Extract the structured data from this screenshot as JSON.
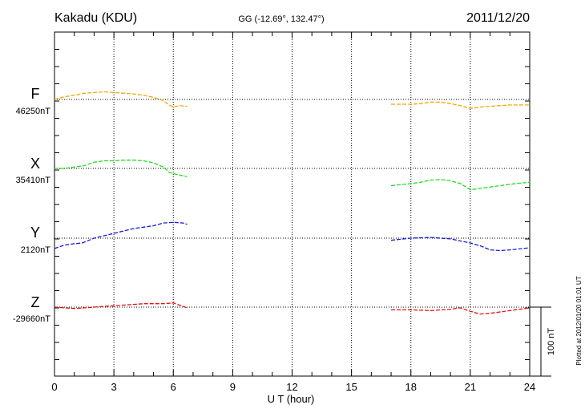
{
  "header": {
    "station": "Kakadu (KDU)",
    "coords": "GG (-12.69°, 132.47°)",
    "date": "2011/12/20"
  },
  "side_note": "Plotted at 2012/01/20 01:01 UT",
  "chart_data": {
    "type": "line",
    "title": "Kakadu (KDU)",
    "xlabel": "U T (hour)",
    "ylabel": "",
    "xlim": [
      0,
      24
    ],
    "x_ticks": [
      0,
      3,
      6,
      9,
      12,
      15,
      18,
      21,
      24
    ],
    "x_tick_labels": [
      "0",
      "3",
      "6",
      "9",
      "12",
      "15",
      "18",
      "21",
      "24"
    ],
    "grid": true,
    "scale_bar": {
      "label": "100 nT",
      "nT": 100
    },
    "series": [
      {
        "name": "F",
        "baseline_label": "46250nT",
        "color": "#f0a800",
        "segments": [
          [
            [
              0.0,
              0
            ],
            [
              0.5,
              4
            ],
            [
              1.0,
              6
            ],
            [
              1.5,
              9
            ],
            [
              2.0,
              10
            ],
            [
              2.5,
              11
            ],
            [
              3.0,
              10
            ],
            [
              3.5,
              9
            ],
            [
              4.0,
              8
            ],
            [
              4.5,
              6
            ],
            [
              5.0,
              3
            ],
            [
              5.5,
              -2
            ],
            [
              5.8,
              -8
            ],
            [
              6.0,
              -11
            ],
            [
              6.3,
              -9
            ],
            [
              6.7,
              -10
            ]
          ],
          [
            [
              17.0,
              -7
            ],
            [
              18.0,
              -7
            ],
            [
              18.5,
              -6
            ],
            [
              19.0,
              -4
            ],
            [
              19.5,
              -4
            ],
            [
              20.0,
              -6
            ],
            [
              20.5,
              -9
            ],
            [
              21.0,
              -13
            ],
            [
              21.5,
              -11
            ],
            [
              22.0,
              -10
            ],
            [
              23.0,
              -8
            ],
            [
              24.0,
              -8
            ]
          ]
        ]
      },
      {
        "name": "X",
        "baseline_label": "35410nT",
        "color": "#22dd22",
        "segments": [
          [
            [
              0.0,
              0
            ],
            [
              0.5,
              0
            ],
            [
              1.0,
              2
            ],
            [
              1.5,
              4
            ],
            [
              2.0,
              9
            ],
            [
              2.5,
              11
            ],
            [
              3.0,
              11
            ],
            [
              3.5,
              12
            ],
            [
              4.0,
              12
            ],
            [
              4.5,
              11
            ],
            [
              5.0,
              8
            ],
            [
              5.5,
              2
            ],
            [
              5.8,
              -6
            ],
            [
              6.2,
              -9
            ],
            [
              6.7,
              -12
            ]
          ],
          [
            [
              17.0,
              -25
            ],
            [
              18.0,
              -22
            ],
            [
              18.5,
              -20
            ],
            [
              19.0,
              -17
            ],
            [
              19.5,
              -16
            ],
            [
              20.0,
              -18
            ],
            [
              20.5,
              -22
            ],
            [
              21.0,
              -31
            ],
            [
              21.5,
              -29
            ],
            [
              22.0,
              -27
            ],
            [
              23.0,
              -23
            ],
            [
              24.0,
              -20
            ]
          ]
        ]
      },
      {
        "name": "Y",
        "baseline_label": "2120nT",
        "color": "#1a1ad8",
        "segments": [
          [
            [
              0.0,
              -15
            ],
            [
              0.5,
              -10
            ],
            [
              1.0,
              -8
            ],
            [
              1.4,
              -7
            ],
            [
              2.0,
              0
            ],
            [
              3.0,
              7
            ],
            [
              4.0,
              14
            ],
            [
              5.0,
              18
            ],
            [
              5.5,
              22
            ],
            [
              6.0,
              23
            ],
            [
              6.5,
              22
            ],
            [
              6.7,
              20
            ]
          ],
          [
            [
              17.0,
              -3
            ],
            [
              18.0,
              0
            ],
            [
              19.0,
              1
            ],
            [
              20.0,
              -1
            ],
            [
              21.0,
              -7
            ],
            [
              21.5,
              -11
            ],
            [
              22.0,
              -17
            ],
            [
              22.5,
              -18
            ],
            [
              23.0,
              -17
            ],
            [
              24.0,
              -14
            ]
          ]
        ]
      },
      {
        "name": "Z",
        "baseline_label": "-29660nT",
        "color": "#e81010",
        "segments": [
          [
            [
              0.0,
              0
            ],
            [
              0.5,
              -1
            ],
            [
              1.0,
              -2
            ],
            [
              1.5,
              -1
            ],
            [
              2.0,
              0
            ],
            [
              2.5,
              1
            ],
            [
              3.0,
              2
            ],
            [
              3.5,
              3
            ],
            [
              4.0,
              4
            ],
            [
              4.5,
              5
            ],
            [
              5.0,
              5
            ],
            [
              5.5,
              5
            ],
            [
              6.0,
              6
            ],
            [
              6.5,
              1
            ],
            [
              6.7,
              -1
            ]
          ],
          [
            [
              17.0,
              -4
            ],
            [
              18.0,
              -4
            ],
            [
              19.0,
              -5
            ],
            [
              20.0,
              -3
            ],
            [
              20.5,
              -1
            ],
            [
              21.0,
              -6
            ],
            [
              21.5,
              -10
            ],
            [
              22.0,
              -9
            ],
            [
              23.0,
              -5
            ],
            [
              24.0,
              -1
            ]
          ]
        ]
      }
    ]
  }
}
